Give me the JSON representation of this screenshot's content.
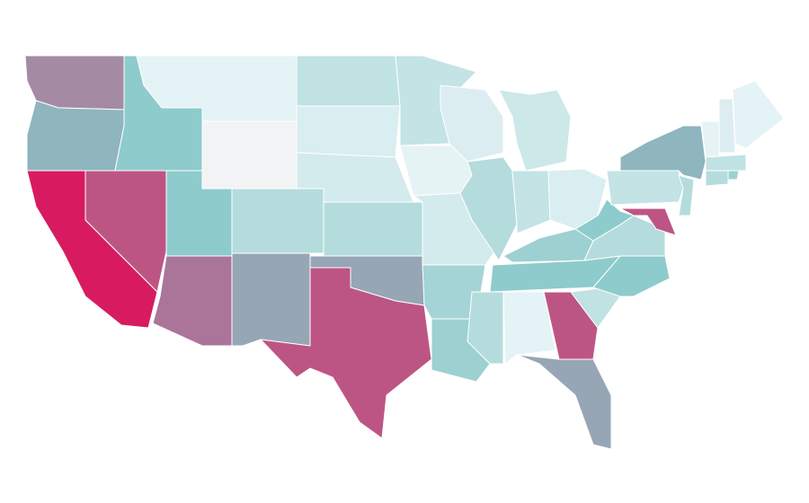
{
  "map": {
    "fills": [
      "#a48ba3",
      "#8fb5bf",
      "#d81b60",
      "#bd5584",
      "#8ecbcc",
      "#e4f3f5",
      "#f2f3f5",
      "#8ecbcc",
      "#aa7599",
      "#b5dcdd",
      "#96a6b5",
      "#c0e2e3",
      "#d9eef0",
      "#d3ebec",
      "#b5dcdd",
      "#96a6b5",
      "#bd5584",
      "#c3e3e5",
      "#e6f3f5",
      "#d3ebec",
      "#a4d4d6",
      "#9dd0d1",
      "#dcedf1",
      "#b5dcdd",
      "#cce8e9",
      "#c3e3e5",
      "#d9eef0",
      "#9dd0d1",
      "#8ecbcc",
      "#b5dcdd",
      "#e4f3f5",
      "#bd5584",
      "#96a6b5",
      "#c0e2e3",
      "#8ecbcc",
      "#b5dcdd",
      "#8ecbcc",
      "#c3e3e5",
      "#8fb5bf",
      "#bd5584",
      "#b5dcdd",
      "#e6f3f5",
      "#dcedf1",
      "#e4f3f5",
      "#c0e2e3",
      "#b5dcdd",
      "#9dd0d1"
    ]
  }
}
